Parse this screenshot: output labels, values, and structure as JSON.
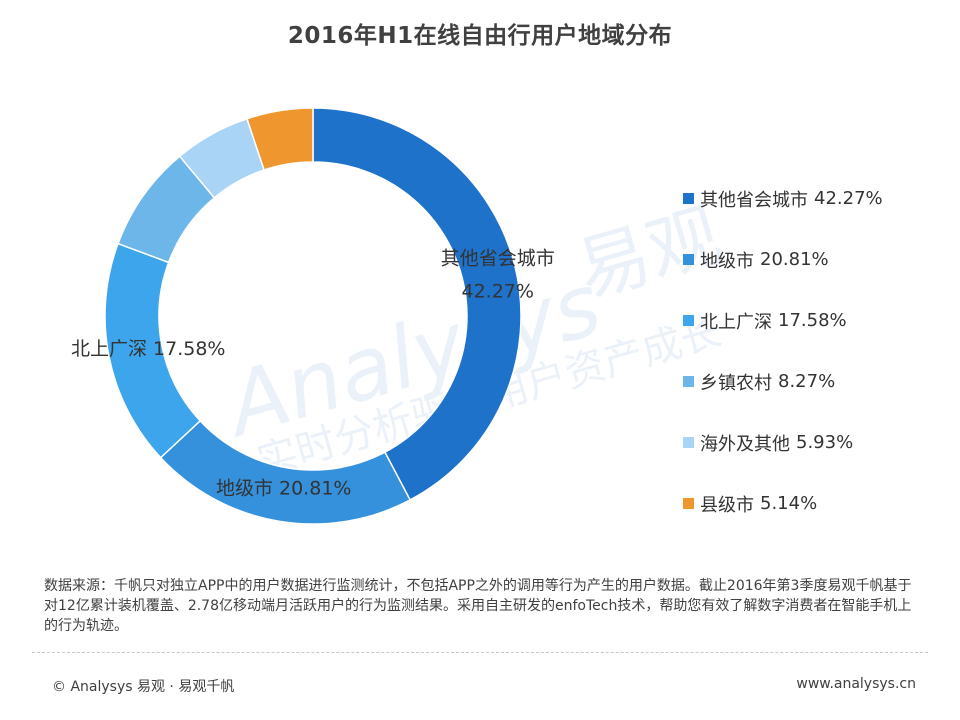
{
  "title": "2016年H1在线自由行用户地域分布",
  "chart_data": {
    "type": "pie",
    "variant": "donut",
    "title": "2016年H1在线自由行用户地域分布",
    "categories": [
      "其他省会城市",
      "地级市",
      "北上广深",
      "乡镇农村",
      "海外及其他",
      "县级市"
    ],
    "values": [
      42.27,
      20.81,
      17.58,
      8.27,
      5.93,
      5.14
    ],
    "value_labels": [
      "42.27%",
      "20.81%",
      "17.58%",
      "8.27%",
      "5.93%",
      "5.14%"
    ],
    "colors": [
      "#1f72c9",
      "#3591db",
      "#3da5ec",
      "#6cb6ea",
      "#a9d4f5",
      "#f0962f"
    ],
    "legend_position": "right",
    "data_labels": [
      {
        "series_index": 0,
        "name": "其他省会城市",
        "value": "42.27%"
      },
      {
        "series_index": 1,
        "name": "地级市",
        "value": "20.81%"
      },
      {
        "series_index": 2,
        "name": "北上广深",
        "value": "17.58%"
      }
    ]
  },
  "source_text": "数据来源：千帆只对独立APP中的用户数据进行监测统计，不包括APP之外的调用等行为产生的用户数据。截止2016年第3季度易观千帆基于对12亿累计装机覆盖、2.78亿移动端月活跃用户的行为监测结果。采用自主研发的enfoTech技术，帮助您有效了解数字消费者在智能手机上的行为轨迹。",
  "watermark": {
    "brand": "Analysys",
    "brand_cn": "易观",
    "slogan": "实时分析驱动用户资产成长"
  },
  "footer": {
    "copyright": "© Analysys 易观 · 易观千帆",
    "website": "www.analysys.cn"
  }
}
